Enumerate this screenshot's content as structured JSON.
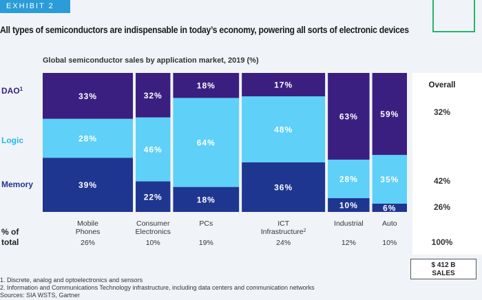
{
  "exhibit_label": "EXHIBIT 2",
  "headline": "All types of semiconductors are indispensable in today’s economy, powering all sorts of electronic devices",
  "subtitle": "Global semiconductor sales by application market, 2019 (%)",
  "stamp": {
    "line1": "$ 412 B",
    "line2": "SALES"
  },
  "footnotes": [
    "1. Discrete, analog and optoelectronics and sensors",
    "2. Information and Communications Technology infrastructure, including data centers and communication networks",
    "Sources: SIA WSTS, Gartner"
  ],
  "chart_data": {
    "type": "bar",
    "subtype": "marimekko",
    "title": "Global semiconductor sales by application market, 2019 (%)",
    "row_labels": [
      {
        "label": "DAO",
        "sup": "1",
        "color": "#3b1f80"
      },
      {
        "label": "Logic",
        "sup": "",
        "color": "#27b4ec"
      },
      {
        "label": "Memory",
        "sup": "",
        "color": "#1f3690"
      }
    ],
    "share_label_line1": "% of",
    "share_label_line2": "total",
    "categories": [
      {
        "name": [
          "Mobile",
          "Phones"
        ],
        "sup": "",
        "share": 26,
        "share_label": "26%",
        "dao": 33,
        "logic": 28,
        "memory": 39
      },
      {
        "name": [
          "Consumer",
          "Electronics"
        ],
        "sup": "",
        "share": 10,
        "share_label": "10%",
        "dao": 32,
        "logic": 46,
        "memory": 22
      },
      {
        "name": [
          "PCs"
        ],
        "sup": "",
        "share": 19,
        "share_label": "19%",
        "dao": 18,
        "logic": 64,
        "memory": 18
      },
      {
        "name": [
          "ICT",
          "Infrastructure"
        ],
        "sup": "2",
        "share": 24,
        "share_label": "24%",
        "dao": 17,
        "logic": 48,
        "memory": 36
      },
      {
        "name": [
          "Industrial"
        ],
        "sup": "",
        "share": 12,
        "share_label": "12%",
        "dao": 63,
        "logic": 28,
        "memory": 10
      },
      {
        "name": [
          "Auto"
        ],
        "sup": "",
        "share": 10,
        "share_label": "10%",
        "dao": 59,
        "logic": 35,
        "memory": 6
      }
    ],
    "overall": {
      "header": "Overall",
      "dao": "32%",
      "logic": "",
      "memory_top": "42%",
      "memory_bottom": "26%",
      "total": "100%"
    },
    "colors": {
      "dao": "#3b1f80",
      "logic": "#5fd0f7",
      "memory": "#1f3690",
      "text": "#ffffff",
      "label_dao": "#3b1f80",
      "label_logic": "#27b4ec",
      "label_memory": "#1f3690"
    }
  }
}
